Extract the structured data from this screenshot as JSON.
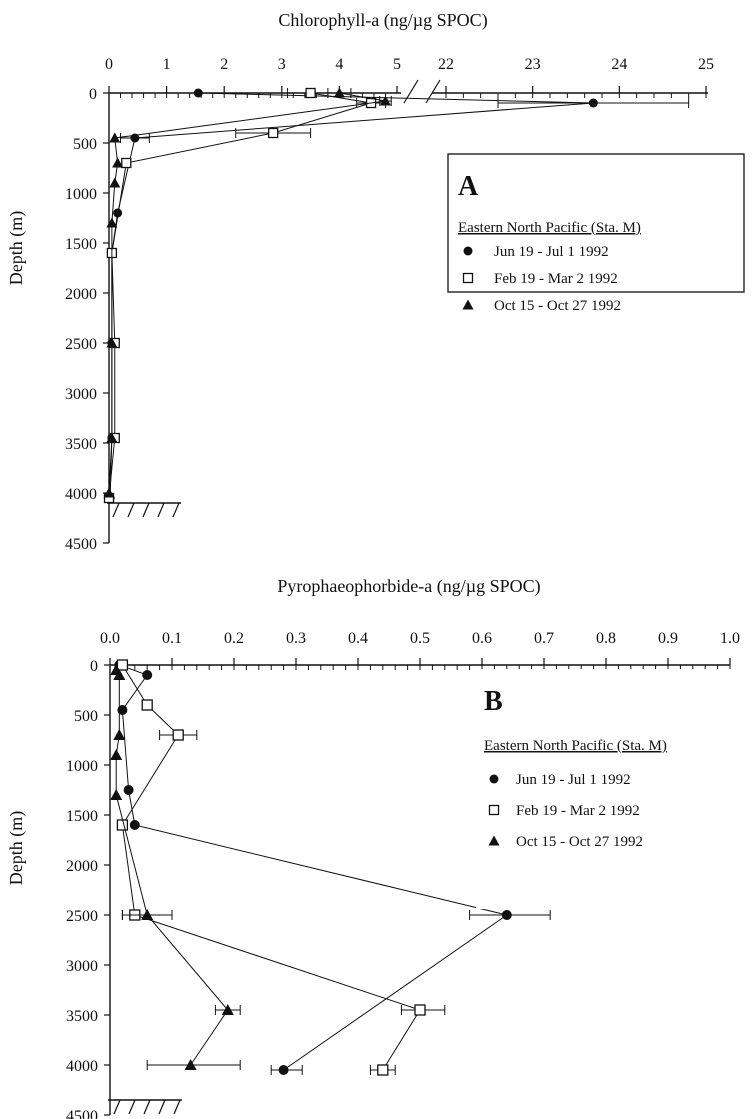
{
  "chart_data": [
    {
      "type": "line",
      "panel_label": "A",
      "title": "Chlorophyll-a (ng/µg SPOC)",
      "xlabel": "Chlorophyll-a (ng/µg SPOC)",
      "ylabel": "Depth (m)",
      "x_axis_position": "top",
      "x_axis_break": [
        5,
        22
      ],
      "x_ticks": [
        "0",
        "1",
        "2",
        "3",
        "4",
        "5",
        "22",
        "23",
        "24",
        "25"
      ],
      "xlim_left": [
        0,
        5
      ],
      "xlim_right": [
        22,
        25
      ],
      "ylim": [
        0,
        4500
      ],
      "y_inverted": true,
      "y_ticks": [
        "0",
        "500",
        "1000",
        "1500",
        "2000",
        "2500",
        "3000",
        "3500",
        "4000",
        "4500"
      ],
      "seafloor_depth": 4100,
      "grid": false,
      "legend": {
        "position": "right",
        "heading": "Eastern North Pacific (Sta. M)"
      },
      "series": [
        {
          "name": "Jun 19 - Jul 1  1992",
          "marker": "circle",
          "points": [
            [
              1.55,
              0
            ],
            [
              23.7,
              100
            ],
            [
              0.45,
              450
            ],
            [
              0.15,
              1200
            ],
            [
              0.05,
              1600
            ],
            [
              0.05,
              2500
            ],
            [
              0.05,
              3450
            ],
            [
              0.02,
              4050
            ]
          ],
          "errors": [
            [
              0,
              0
            ],
            [
              22.6,
              24.8
            ],
            [
              0.2,
              0.7
            ],
            [
              0,
              0
            ],
            [
              0,
              0
            ],
            [
              0,
              0
            ],
            [
              0,
              0
            ],
            [
              0,
              0
            ]
          ]
        },
        {
          "name": "Feb 19 - Mar 2  1992",
          "marker": "square",
          "points": [
            [
              3.5,
              0
            ],
            [
              4.55,
              100
            ],
            [
              2.85,
              400
            ],
            [
              0.3,
              700
            ],
            [
              0.05,
              1600
            ],
            [
              0.1,
              2500
            ],
            [
              0.1,
              3450
            ],
            [
              0.0,
              4050
            ]
          ],
          "errors": [
            [
              3.1,
              4.0
            ],
            [
              4.3,
              4.8
            ],
            [
              2.2,
              3.5
            ],
            [
              0,
              0
            ],
            [
              0,
              0
            ],
            [
              0,
              0
            ],
            [
              0,
              0
            ],
            [
              0,
              0
            ]
          ]
        },
        {
          "name": "Oct 15 - Oct 27  1992",
          "marker": "triangle",
          "points": [
            [
              4.0,
              0
            ],
            [
              4.8,
              80
            ],
            [
              0.1,
              450
            ],
            [
              0.15,
              700
            ],
            [
              0.1,
              900
            ],
            [
              0.05,
              1300
            ],
            [
              0.05,
              2500
            ],
            [
              0.05,
              3450
            ],
            [
              0.0,
              4000
            ]
          ],
          "errors": [
            [
              3.8,
              4.2
            ],
            [
              4.7,
              4.9
            ],
            [
              0,
              0
            ],
            [
              0,
              0
            ],
            [
              0,
              0
            ],
            [
              0,
              0
            ],
            [
              0,
              0
            ],
            [
              0,
              0
            ],
            [
              0,
              0
            ]
          ]
        }
      ]
    },
    {
      "type": "line",
      "panel_label": "B",
      "title": "Pyrophaeophorbide-a (ng/µg SPOC)",
      "xlabel": "Pyrophaeophorbide-a (ng/µg SPOC)",
      "ylabel": "Depth (m)",
      "x_axis_position": "top",
      "x_ticks": [
        "0.0",
        "0.1",
        "0.2",
        "0.3",
        "0.4",
        "0.5",
        "0.6",
        "0.7",
        "0.8",
        "0.9",
        "1.0"
      ],
      "xlim": [
        0,
        1.0
      ],
      "ylim": [
        0,
        4500
      ],
      "y_inverted": true,
      "y_ticks": [
        "0",
        "500",
        "1000",
        "1500",
        "2000",
        "2500",
        "3000",
        "3500",
        "4000",
        "4500"
      ],
      "seafloor_depth": 4350,
      "grid": false,
      "legend": {
        "position": "right",
        "heading": "Eastern North Pacific (Sta. M)"
      },
      "series": [
        {
          "name": "Jun 19 - Jul 1  1992",
          "marker": "circle",
          "points": [
            [
              0.015,
              0
            ],
            [
              0.06,
              100
            ],
            [
              0.02,
              450
            ],
            [
              0.03,
              1250
            ],
            [
              0.04,
              1600
            ],
            [
              0.64,
              2500
            ],
            [
              0.28,
              4050
            ]
          ],
          "errors": [
            [
              0,
              0
            ],
            [
              0,
              0
            ],
            [
              0,
              0
            ],
            [
              0,
              0
            ],
            [
              0,
              0
            ],
            [
              0.58,
              0.71
            ],
            [
              0.26,
              0.31
            ]
          ]
        },
        {
          "name": "Feb 19 - Mar 2  1992",
          "marker": "square",
          "points": [
            [
              0.02,
              0
            ],
            [
              0.06,
              400
            ],
            [
              0.11,
              700
            ],
            [
              0.02,
              1600
            ],
            [
              0.04,
              2500
            ],
            [
              0.5,
              3450
            ],
            [
              0.44,
              4050
            ]
          ],
          "errors": [
            [
              0,
              0
            ],
            [
              0,
              0
            ],
            [
              0.08,
              0.14
            ],
            [
              0,
              0
            ],
            [
              0.02,
              0.06
            ],
            [
              0.47,
              0.54
            ],
            [
              0.42,
              0.46
            ]
          ]
        },
        {
          "name": "Oct 15 - Oct 27  1992",
          "marker": "triangle",
          "points": [
            [
              0.01,
              50
            ],
            [
              0.015,
              100
            ],
            [
              0.015,
              700
            ],
            [
              0.01,
              900
            ],
            [
              0.01,
              1300
            ],
            [
              0.06,
              2500
            ],
            [
              0.19,
              3450
            ],
            [
              0.13,
              4000
            ]
          ],
          "errors": [
            [
              0,
              0
            ],
            [
              0,
              0
            ],
            [
              0,
              0
            ],
            [
              0,
              0
            ],
            [
              0,
              0
            ],
            [
              0.02,
              0.1
            ],
            [
              0.17,
              0.21
            ],
            [
              0.06,
              0.21
            ]
          ]
        }
      ]
    }
  ]
}
